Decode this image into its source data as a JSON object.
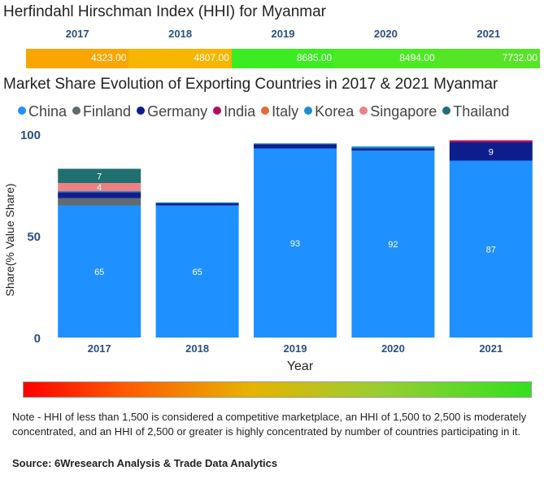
{
  "hhi": {
    "title": "Herfindahl Hirschman Index (HHI) for Myanmar",
    "years": [
      "2017",
      "2018",
      "2019",
      "2020",
      "2021"
    ],
    "values": [
      "4323.00",
      "4807.00",
      "8685.00",
      "8494.00",
      "7732.00"
    ],
    "colors": [
      "#f9a602",
      "#f7b500",
      "#3cec22",
      "#4bea22",
      "#56e427"
    ]
  },
  "chart_data": {
    "type": "bar",
    "stacked": true,
    "title": "Market Share Evolution of Exporting Countries in 2017 & 2021 Myanmar",
    "xlabel": "Year",
    "ylabel": "Share(% Value Share)",
    "ylim": [
      0,
      100
    ],
    "yticks": [
      "0",
      "50",
      "100"
    ],
    "categories": [
      "2017",
      "2018",
      "2019",
      "2020",
      "2021"
    ],
    "series": [
      {
        "name": "China",
        "color": "#1e90ff",
        "values": [
          65,
          65,
          93,
          92,
          87
        ],
        "labels": [
          "65",
          "65",
          "93",
          "92",
          "87"
        ]
      },
      {
        "name": "Finland",
        "color": "#5f6b6d",
        "values": [
          3.5,
          0,
          0,
          0,
          0
        ],
        "labels": [
          "",
          "",
          "",
          "",
          ""
        ]
      },
      {
        "name": "Germany",
        "color": "#0d1e8c",
        "values": [
          3,
          1,
          2,
          1,
          9
        ],
        "labels": [
          "",
          "",
          "",
          "",
          "9"
        ]
      },
      {
        "name": "India",
        "color": "#b0105c",
        "values": [
          0,
          0,
          0,
          0,
          1
        ],
        "labels": [
          "",
          "",
          "",
          "",
          ""
        ]
      },
      {
        "name": "Italy",
        "color": "#e26b3a",
        "values": [
          0,
          0,
          0,
          0,
          0
        ],
        "labels": [
          "",
          "",
          "",
          "",
          ""
        ]
      },
      {
        "name": "Korea",
        "color": "#1a8fca",
        "values": [
          0.5,
          0.5,
          0.5,
          1,
          0
        ],
        "labels": [
          "",
          "",
          "",
          "",
          ""
        ]
      },
      {
        "name": "Singapore",
        "color": "#f08080",
        "values": [
          4,
          0,
          0,
          0,
          0
        ],
        "labels": [
          "4",
          "",
          "",
          "",
          ""
        ]
      },
      {
        "name": "Thailand",
        "color": "#207070",
        "values": [
          7,
          0,
          0,
          0,
          0
        ],
        "labels": [
          "7",
          "",
          "",
          "",
          ""
        ]
      }
    ]
  },
  "note": "Note - HHI of less than 1,500 is considered a competitive marketplace, an HHI of 1,500 to 2,500 is moderately concentrated, and an HHI of 2,500 or greater is highly concentrated by number of countries participating in it.",
  "source": "Source: 6Wresearch Analysis & Trade Data Analytics"
}
